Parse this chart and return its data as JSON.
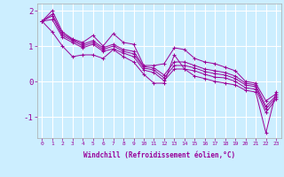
{
  "xlabel": "Windchill (Refroidissement éolien,°C)",
  "bg_color": "#cceeff",
  "grid_color": "#ffffff",
  "line_color": "#990099",
  "x_values": [
    0,
    1,
    2,
    3,
    4,
    5,
    6,
    7,
    8,
    9,
    10,
    11,
    12,
    13,
    14,
    15,
    16,
    17,
    18,
    19,
    20,
    21,
    22,
    23
  ],
  "series": {
    "max": [
      1.7,
      2.0,
      1.4,
      1.2,
      1.1,
      1.3,
      1.0,
      1.35,
      1.1,
      1.05,
      0.45,
      0.45,
      0.5,
      0.95,
      0.9,
      0.65,
      0.55,
      0.5,
      0.4,
      0.3,
      0.0,
      -0.05,
      -0.55,
      -0.35
    ],
    "p75": [
      1.7,
      1.9,
      1.35,
      1.18,
      1.05,
      1.15,
      0.95,
      1.05,
      0.9,
      0.85,
      0.42,
      0.38,
      0.18,
      0.55,
      0.55,
      0.45,
      0.35,
      0.3,
      0.25,
      0.15,
      -0.05,
      -0.1,
      -0.7,
      -0.4
    ],
    "mean": [
      1.7,
      1.85,
      1.3,
      1.15,
      1.0,
      1.1,
      0.9,
      1.0,
      0.85,
      0.78,
      0.38,
      0.32,
      0.1,
      0.45,
      0.45,
      0.38,
      0.28,
      0.22,
      0.18,
      0.08,
      -0.1,
      -0.15,
      -0.78,
      -0.45
    ],
    "p25": [
      1.7,
      1.75,
      1.25,
      1.1,
      0.95,
      1.05,
      0.85,
      0.92,
      0.8,
      0.7,
      0.32,
      0.25,
      0.02,
      0.35,
      0.35,
      0.3,
      0.2,
      0.12,
      0.1,
      0.0,
      -0.18,
      -0.22,
      -0.88,
      -0.5
    ],
    "min": [
      1.7,
      1.4,
      1.0,
      0.7,
      0.75,
      0.75,
      0.65,
      0.9,
      0.7,
      0.55,
      0.2,
      -0.05,
      -0.05,
      0.75,
      0.35,
      0.15,
      0.08,
      0.0,
      -0.05,
      -0.1,
      -0.25,
      -0.3,
      -1.45,
      -0.3
    ]
  },
  "ylim": [
    -1.6,
    2.2
  ],
  "yticks": [
    -1,
    0,
    1,
    2
  ],
  "xtick_labels": [
    "0",
    "1",
    "2",
    "3",
    "4",
    "5",
    "6",
    "7",
    "8",
    "9",
    "10",
    "11",
    "12",
    "13",
    "14",
    "15",
    "16",
    "17",
    "18",
    "19",
    "20",
    "21",
    "22",
    "23"
  ]
}
